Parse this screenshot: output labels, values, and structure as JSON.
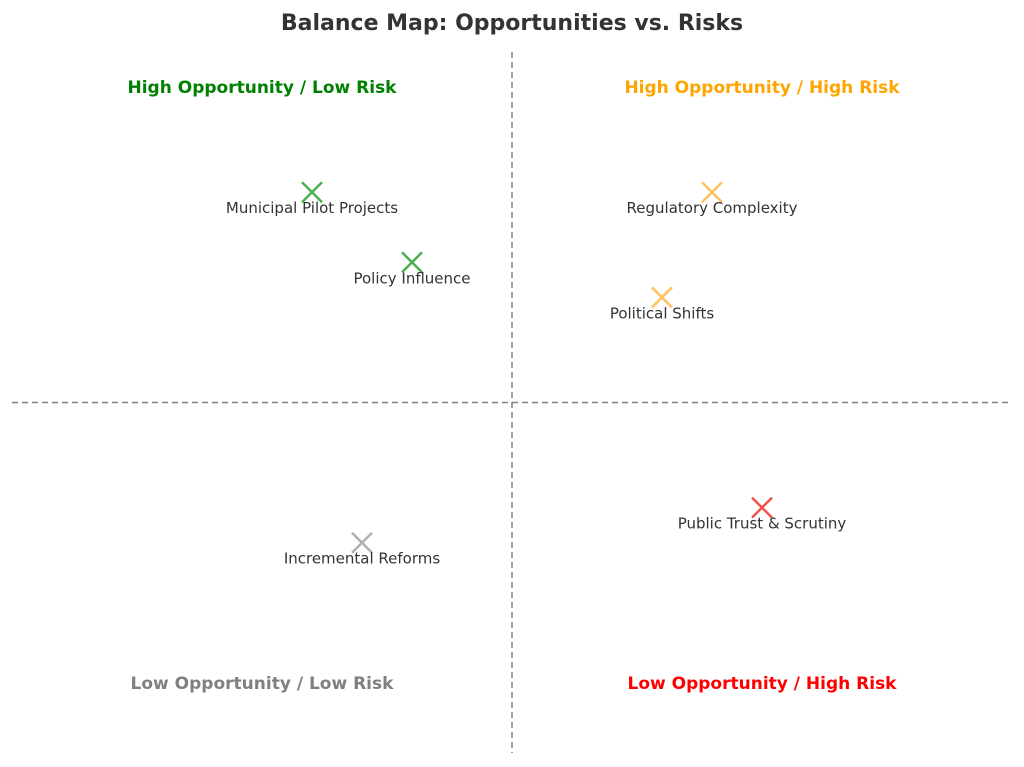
{
  "chart_data": {
    "type": "scatter",
    "title": "Balance Map: Opportunities vs. Risks",
    "xlim": [
      0,
      10
    ],
    "ylim": [
      0,
      10
    ],
    "divider": {
      "x": 5,
      "y": 5
    },
    "quadrants": [
      {
        "label": "High Opportunity / Low Risk",
        "color": "#008000",
        "x": 2.5,
        "y": 9.5
      },
      {
        "label": "High Opportunity / High Risk",
        "color": "#FFA500",
        "x": 7.5,
        "y": 9.5
      },
      {
        "label": "Low Opportunity / Low Risk",
        "color": "#808080",
        "x": 2.5,
        "y": 1.0
      },
      {
        "label": "Low Opportunity / High Risk",
        "color": "#FF0000",
        "x": 7.5,
        "y": 1.0
      }
    ],
    "points": [
      {
        "label": "Municipal Pilot Projects",
        "x": 3.0,
        "y": 8.0,
        "color": "#4CAF50"
      },
      {
        "label": "Policy Influence",
        "x": 4.0,
        "y": 7.0,
        "color": "#4CAF50"
      },
      {
        "label": "Regulatory Complexity",
        "x": 7.0,
        "y": 8.0,
        "color": "#FFC15E"
      },
      {
        "label": "Political Shifts",
        "x": 6.5,
        "y": 6.5,
        "color": "#FFC15E"
      },
      {
        "label": "Incremental Reforms",
        "x": 3.5,
        "y": 3.0,
        "color": "#B0B0B0"
      },
      {
        "label": "Public Trust & Scrutiny",
        "x": 7.5,
        "y": 3.5,
        "color": "#EF5350"
      }
    ]
  }
}
